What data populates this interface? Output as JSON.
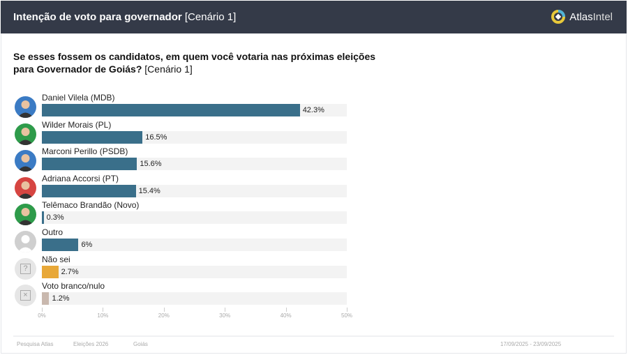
{
  "header": {
    "title_bold": "Intenção de voto para governador",
    "title_rest": "[Cenário 1]",
    "logo_a": "Atlas",
    "logo_b": "Intel"
  },
  "question": {
    "bold": "Se esses fossem os candidatos, em quem você votaria nas próximas eleições para Governador de Goiás?",
    "rest": "[Cenário 1]"
  },
  "chart_data": {
    "type": "bar",
    "orientation": "horizontal",
    "categories": [
      "Daniel Vilela (MDB)",
      "Wilder Morais (PL)",
      "Marconi Perillo (PSDB)",
      "Adriana Accorsi (PT)",
      "Telêmaco Brandão (Novo)",
      "Outro",
      "Não sei",
      "Voto branco/nulo"
    ],
    "values": [
      42.3,
      16.5,
      15.6,
      15.4,
      0.3,
      6,
      2.7,
      1.2
    ],
    "labels": [
      "42.3%",
      "16.5%",
      "15.6%",
      "15.4%",
      "0.3%",
      "6%",
      "2.7%",
      "1.2%"
    ],
    "colors": [
      "#3a6f8a",
      "#3a6f8a",
      "#3a6f8a",
      "#3a6f8a",
      "#3a6f8a",
      "#3a6f8a",
      "#e8a838",
      "#c9b8ae"
    ],
    "avatar_colors": [
      "#3b7bc4",
      "#2e9b4a",
      "#3b7bc4",
      "#d64541",
      "#2e9b4a",
      "#cfcfcf",
      "#e6e6e6",
      "#e6e6e6"
    ],
    "xlim": [
      0,
      50
    ],
    "ticks": [
      "0%",
      "10%",
      "20%",
      "30%",
      "40%",
      "50%"
    ]
  },
  "footer": {
    "items": [
      "Pesquisa Atlas",
      "Eleições 2026",
      "Goiás"
    ],
    "date": "17/09/2025 - 23/09/2025"
  }
}
